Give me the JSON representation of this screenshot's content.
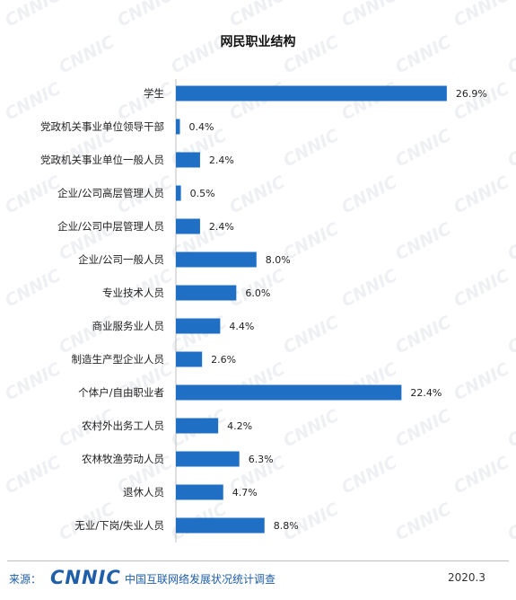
{
  "title": "网民职业结构",
  "chart_data": {
    "type": "bar",
    "orientation": "horizontal",
    "title": "网民职业结构",
    "categories": [
      "学生",
      "党政机关事业单位领导干部",
      "党政机关事业单位一般人员",
      "企业/公司高层管理人员",
      "企业/公司中层管理人员",
      "企业/公司一般人员",
      "专业技术人员",
      "商业服务业人员",
      "制造生产型企业人员",
      "个体户/自由职业者",
      "农村外出务工人员",
      "农林牧渔劳动人员",
      "退休人员",
      "无业/下岗/失业人员"
    ],
    "values": [
      26.9,
      0.4,
      2.4,
      0.5,
      2.4,
      8.0,
      6.0,
      4.4,
      2.6,
      22.4,
      4.2,
      6.3,
      4.7,
      8.8
    ],
    "value_labels": [
      "26.9%",
      "0.4%",
      "2.4%",
      "0.5%",
      "2.4%",
      "8.0%",
      "6.0%",
      "4.4%",
      "2.6%",
      "22.4%",
      "4.2%",
      "6.3%",
      "4.7%",
      "8.8%"
    ],
    "unit": "%",
    "xlim": [
      0,
      27
    ],
    "grid": false,
    "legend": "none",
    "bar_color": "#1f6fc5"
  },
  "footer": {
    "source_label": "来源：",
    "logo_text": "CNNIC",
    "source_name": "中国互联网络发展状况统计调查",
    "date": "2020.3"
  },
  "watermark_text": "CNNIC",
  "colors": {
    "bar": "#1f6fc5",
    "brand": "#1f5ea8",
    "watermark": "#eef0f3"
  }
}
